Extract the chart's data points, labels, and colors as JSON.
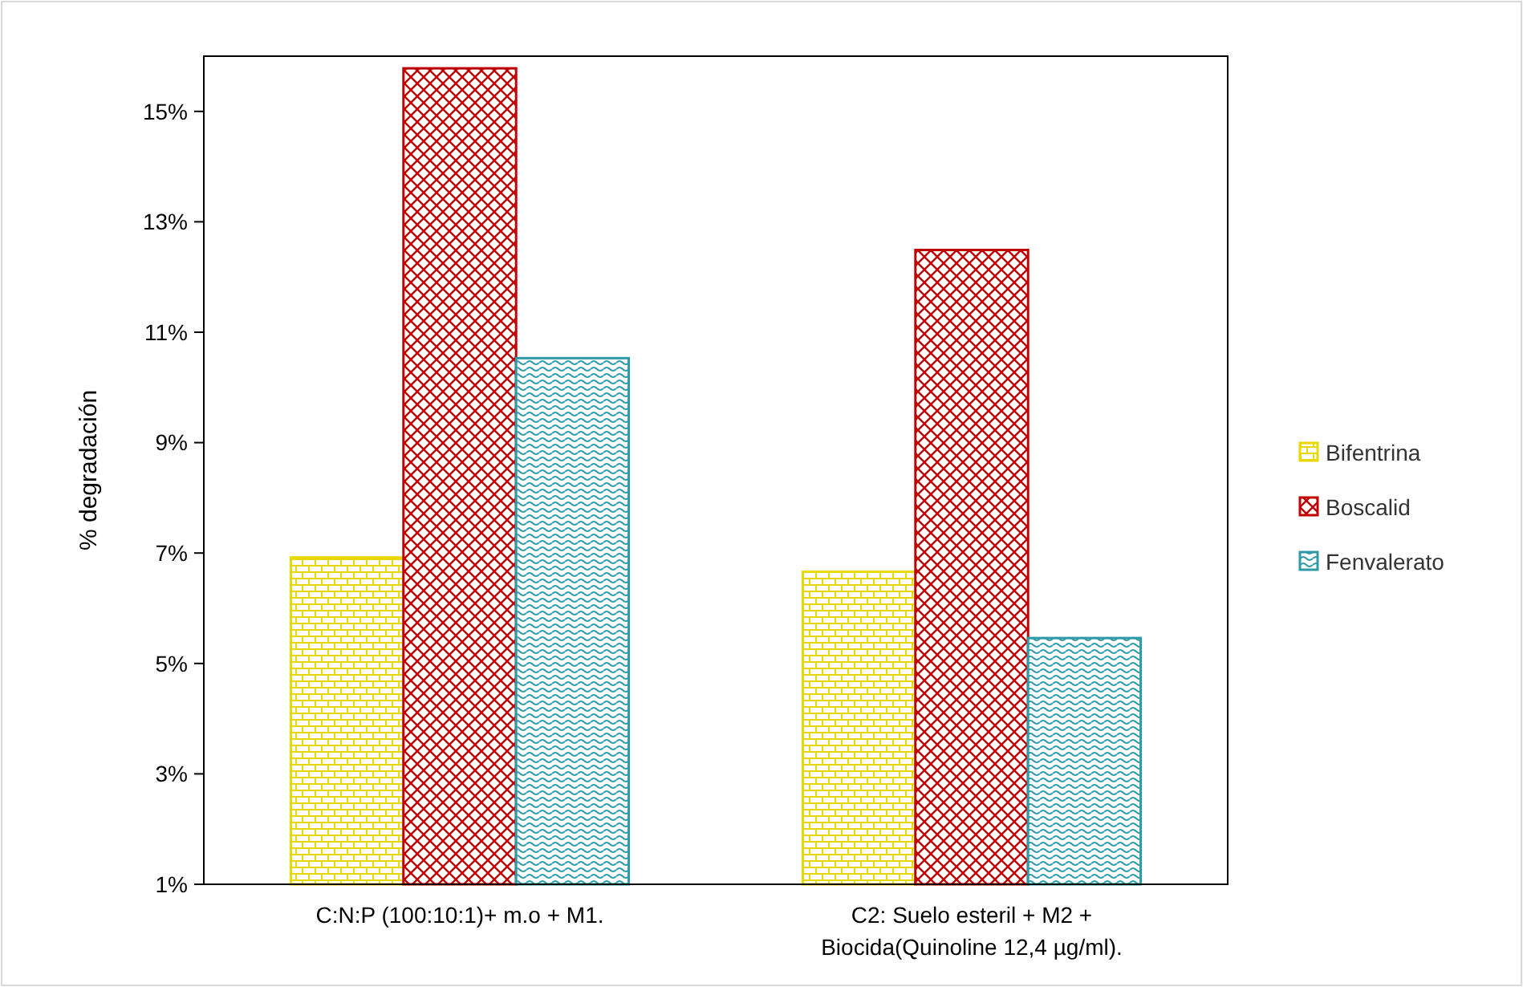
{
  "chart_data": {
    "type": "bar",
    "ylabel": "% degradación",
    "categories": [
      "C:N:P (100:10:1)+ m.o + M1.",
      "C2: Suelo esteril + M2 + Biocida(Quinoline 12,4 µg/ml)."
    ],
    "series": [
      {
        "name": "Bifentrina",
        "color": "#e8d800",
        "values": [
          6.92,
          6.66
        ]
      },
      {
        "name": "Boscalid",
        "color": "#c00000",
        "values": [
          15.78,
          12.49
        ]
      },
      {
        "name": "Fenvalerato",
        "color": "#2e9aa8",
        "values": [
          10.53,
          5.46
        ]
      }
    ],
    "ylim": [
      1,
      16
    ],
    "yticks": [
      {
        "value": 1,
        "label": "1%"
      },
      {
        "value": 3,
        "label": "3%"
      },
      {
        "value": 5,
        "label": "5%"
      },
      {
        "value": 7,
        "label": "7%"
      },
      {
        "value": 9,
        "label": "9%"
      },
      {
        "value": 11,
        "label": "11%"
      },
      {
        "value": 13,
        "label": "13%"
      },
      {
        "value": 15,
        "label": "15%"
      }
    ],
    "grid": false,
    "legend": "right"
  }
}
